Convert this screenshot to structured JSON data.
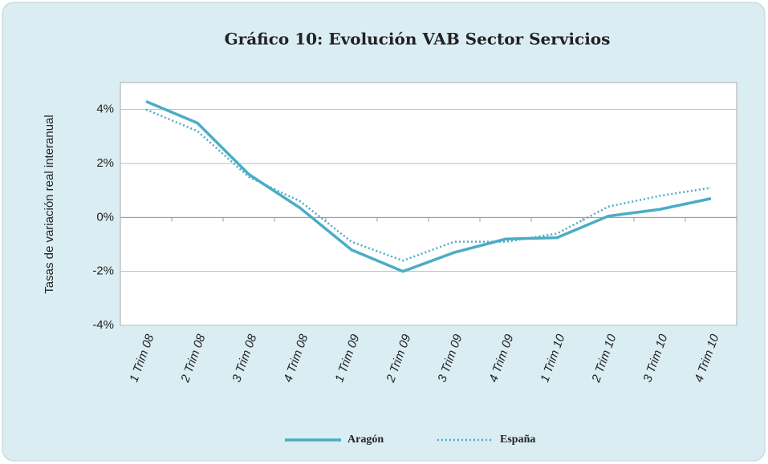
{
  "chart_data": {
    "type": "line",
    "title": "Gráfico 10: Evolución VAB Sector Servicios",
    "y_label": "Tasas de variación real interanual",
    "categories": [
      "1 Trim 08",
      "2 Trim 08",
      "3 Trim 08",
      "4 Trim 08",
      "1 Trim 09",
      "2 Trim 09",
      "3 Trim 09",
      "4 Trim 09",
      "1 Trim 10",
      "2 Trim 10",
      "3 Trim 10",
      "4 Trim 10"
    ],
    "series": [
      {
        "name": "Aragón",
        "color": "#4bacc6",
        "style": "solid",
        "values": [
          4.3,
          3.5,
          1.6,
          0.35,
          -1.2,
          -2.0,
          -1.3,
          -0.8,
          -0.75,
          0.05,
          0.3,
          0.7
        ]
      },
      {
        "name": "España",
        "color": "#4bacc6",
        "style": "dotted",
        "values": [
          4.0,
          3.2,
          1.5,
          0.6,
          -0.9,
          -1.6,
          -0.9,
          -0.9,
          -0.6,
          0.4,
          0.8,
          1.1
        ]
      }
    ],
    "ylim": [
      -4,
      5
    ],
    "yticks": [
      {
        "value": -4,
        "label": "-4%"
      },
      {
        "value": -2,
        "label": "-2%"
      },
      {
        "value": 0,
        "label": "0%"
      },
      {
        "value": 2,
        "label": "2%"
      },
      {
        "value": 4,
        "label": "4%"
      }
    ],
    "grid": true,
    "legend": "bottom"
  }
}
